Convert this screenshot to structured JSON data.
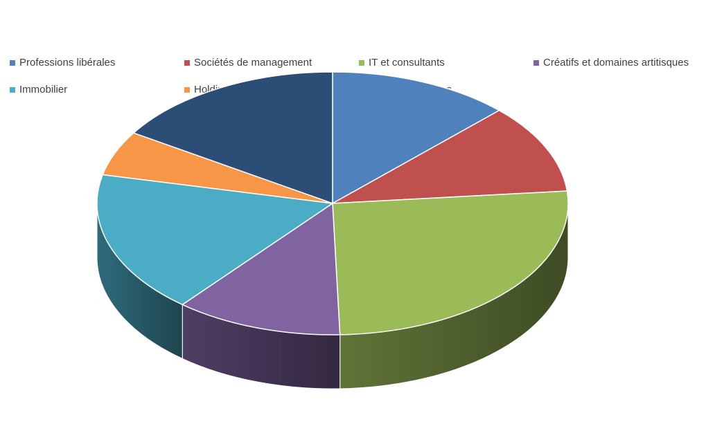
{
  "chart_data": {
    "type": "pie",
    "style": "3d",
    "categories": [
      "Professions libérales",
      "Sociétés de management",
      "IT et consultants",
      "Créatifs et domaines artitisques",
      "Immobilier",
      "Holdings et financières",
      "Services et autres"
    ],
    "values": [
      12.5,
      11,
      26,
      11.5,
      17.5,
      5.5,
      16
    ],
    "colors": [
      "#4f81bd",
      "#c0504d",
      "#9bbb59",
      "#8064a2",
      "#4bacc6",
      "#f79646",
      "#2c4d75"
    ],
    "title": "",
    "legend_position": "top",
    "data_labels": false
  }
}
